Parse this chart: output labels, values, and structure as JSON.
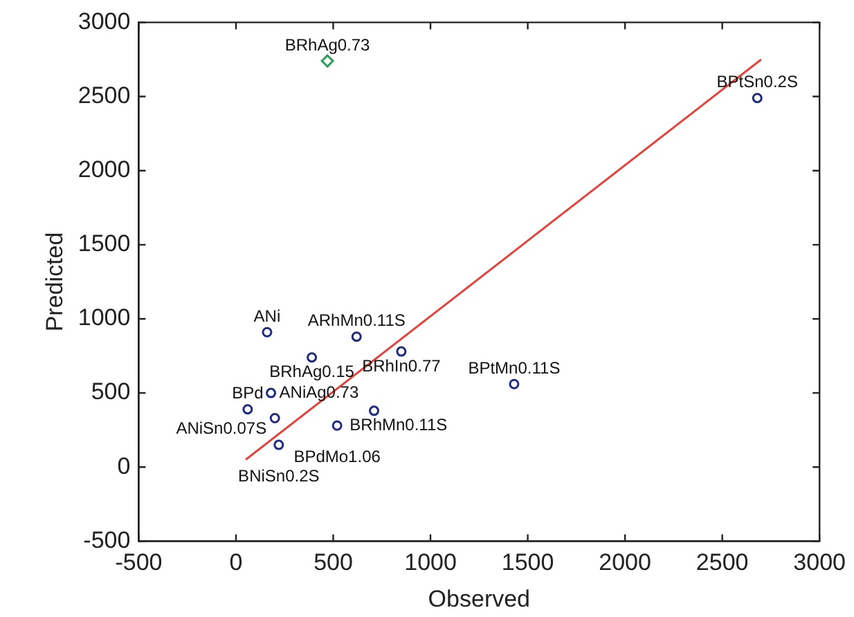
{
  "chart_data": {
    "type": "scatter",
    "xlabel": "Observed",
    "ylabel": "Predicted",
    "xlim": [
      -500,
      3000
    ],
    "xticks": [
      -500,
      0,
      500,
      1000,
      1500,
      2000,
      2500,
      3000
    ],
    "ylim": [
      -500,
      3000
    ],
    "yticks": [
      -500,
      0,
      500,
      1000,
      1500,
      2000,
      2500,
      3000
    ],
    "grid": false,
    "legend": false,
    "series": [
      {
        "type": "scatter",
        "marker": "circle",
        "color": "#1f2a80",
        "x": [
          2680,
          1430,
          850,
          390,
          160,
          620,
          60,
          200,
          180,
          710,
          520,
          220
        ],
        "values": [
          2490,
          560,
          780,
          740,
          910,
          880,
          390,
          330,
          500,
          380,
          280,
          150
        ],
        "value_labels": [
          "BPtSn0.2S",
          "BPtMn0.11S",
          "BRhIn0.77",
          "BRhAg0.15",
          "ANi",
          "ARhMn0.11S",
          "BPd",
          "ANiSn0.07S",
          "ANiAg0.73",
          "BRhMn0.11S",
          "BPdMo1.06",
          "BNiSn0.2S"
        ]
      },
      {
        "type": "scatter",
        "marker": "diamond",
        "color": "#2ca05a",
        "x": [
          470
        ],
        "values": [
          2740
        ],
        "value_labels": [
          "BRhAg0.73"
        ]
      },
      {
        "type": "line",
        "marker": "none",
        "color": "#e8413a",
        "x": [
          50,
          2700
        ],
        "values": [
          50,
          2750
        ]
      }
    ]
  }
}
